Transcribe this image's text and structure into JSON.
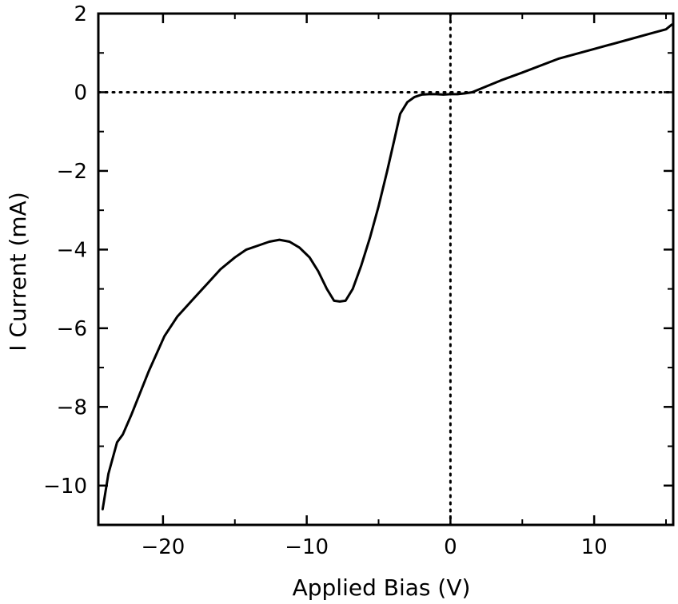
{
  "chart_data": {
    "type": "line",
    "xlabel": "Applied Bias (V)",
    "ylabel": "I Current (mA)",
    "xlim": [
      -24.5,
      15.5
    ],
    "ylim": [
      -11,
      2
    ],
    "x_ticks": [
      -20,
      -10,
      0,
      10
    ],
    "x_tick_labels": [
      "−20",
      "−10",
      "0",
      "10"
    ],
    "y_ticks": [
      2,
      0,
      -2,
      -4,
      -6,
      -8,
      -10
    ],
    "y_tick_labels": [
      "2",
      "0",
      "−2",
      "−4",
      "−6",
      "−8",
      "−10"
    ],
    "x_minor_step": 5,
    "y_minor_step": 1,
    "reference_lines": {
      "x": 0,
      "y": 0,
      "style": "dotted"
    },
    "grid": false,
    "line_color": "#000000",
    "series": [
      {
        "x": [
          -24.2,
          -23.8,
          -23.2,
          -22.8,
          -22.2,
          -21.0,
          -19.9,
          -19.0,
          -18.0,
          -17.0,
          -16.0,
          -15.0,
          -14.2,
          -13.4,
          -12.6,
          -11.9,
          -11.2,
          -10.5,
          -9.8,
          -9.2,
          -8.6,
          -8.1,
          -7.7,
          -7.3,
          -6.8,
          -6.2,
          -5.6,
          -5.0,
          -4.4,
          -3.9,
          -3.5,
          -3.0,
          -2.5,
          -2.0,
          -1.5,
          -1.0,
          -0.5,
          0.0,
          0.5,
          1.0,
          1.5,
          2.5,
          3.5,
          5.0,
          7.5,
          10.0,
          12.5,
          14.0,
          15.0,
          15.4
        ],
        "y": [
          -10.6,
          -9.7,
          -8.9,
          -8.7,
          -8.2,
          -7.1,
          -6.2,
          -5.7,
          -5.3,
          -4.9,
          -4.5,
          -4.2,
          -4.0,
          -3.9,
          -3.8,
          -3.75,
          -3.8,
          -3.95,
          -4.2,
          -4.55,
          -5.0,
          -5.3,
          -5.32,
          -5.3,
          -5.0,
          -4.4,
          -3.7,
          -2.9,
          -2.0,
          -1.2,
          -0.55,
          -0.25,
          -0.12,
          -0.06,
          -0.05,
          -0.05,
          -0.06,
          -0.05,
          -0.05,
          -0.03,
          0.0,
          0.15,
          0.3,
          0.5,
          0.85,
          1.1,
          1.35,
          1.5,
          1.6,
          1.72
        ]
      }
    ]
  }
}
